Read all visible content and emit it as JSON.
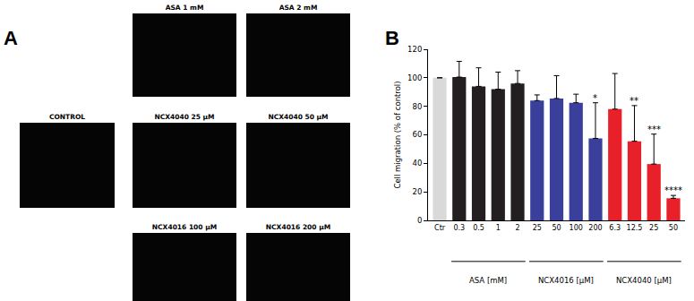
{
  "panel_labels": [
    "A",
    "B"
  ],
  "images": [
    "ASA 1 mM",
    "ASA 2 mM",
    "CONTROL",
    "NCX4040 25 μM",
    "NCX4040 50 μM",
    "NCX4016 100 μM",
    "NCX4016 200 μM"
  ],
  "chart_data": {
    "type": "bar",
    "y_label": "Cell migration (% of control)",
    "categories": [
      "Ctr",
      "0.3",
      "0.5",
      "1",
      "2",
      "25",
      "50",
      "100",
      "200",
      "6.3",
      "12.5",
      "25",
      "50"
    ],
    "values": [
      100,
      100.5,
      94,
      92,
      96,
      84,
      85.5,
      82.5,
      57.5,
      78,
      55.5,
      39.5,
      15.5
    ],
    "errors": [
      null,
      11,
      13,
      12,
      9,
      4,
      16,
      6,
      25,
      25,
      25,
      21,
      2
    ],
    "significance": [
      null,
      null,
      null,
      null,
      null,
      null,
      null,
      null,
      "*",
      null,
      "**",
      "***",
      "****"
    ],
    "colors": [
      "#d9d9d9",
      "#231f20",
      "#231f20",
      "#231f20",
      "#231f20",
      "#3b3f9c",
      "#3b3f9c",
      "#3b3f9c",
      "#3b3f9c",
      "#e8202a",
      "#e8202a",
      "#e8202a",
      "#e8202a"
    ],
    "groups": [
      {
        "label": "ASA [mM]",
        "start": 1,
        "end": 4
      },
      {
        "label": "NCX4016 [μM]",
        "start": 5,
        "end": 8
      },
      {
        "label": "NCX4040 [μM]",
        "start": 9,
        "end": 12
      }
    ],
    "ylim": [
      0,
      120
    ],
    "yticks": [
      0,
      20,
      40,
      60,
      80,
      100,
      120
    ],
    "grid": false
  }
}
